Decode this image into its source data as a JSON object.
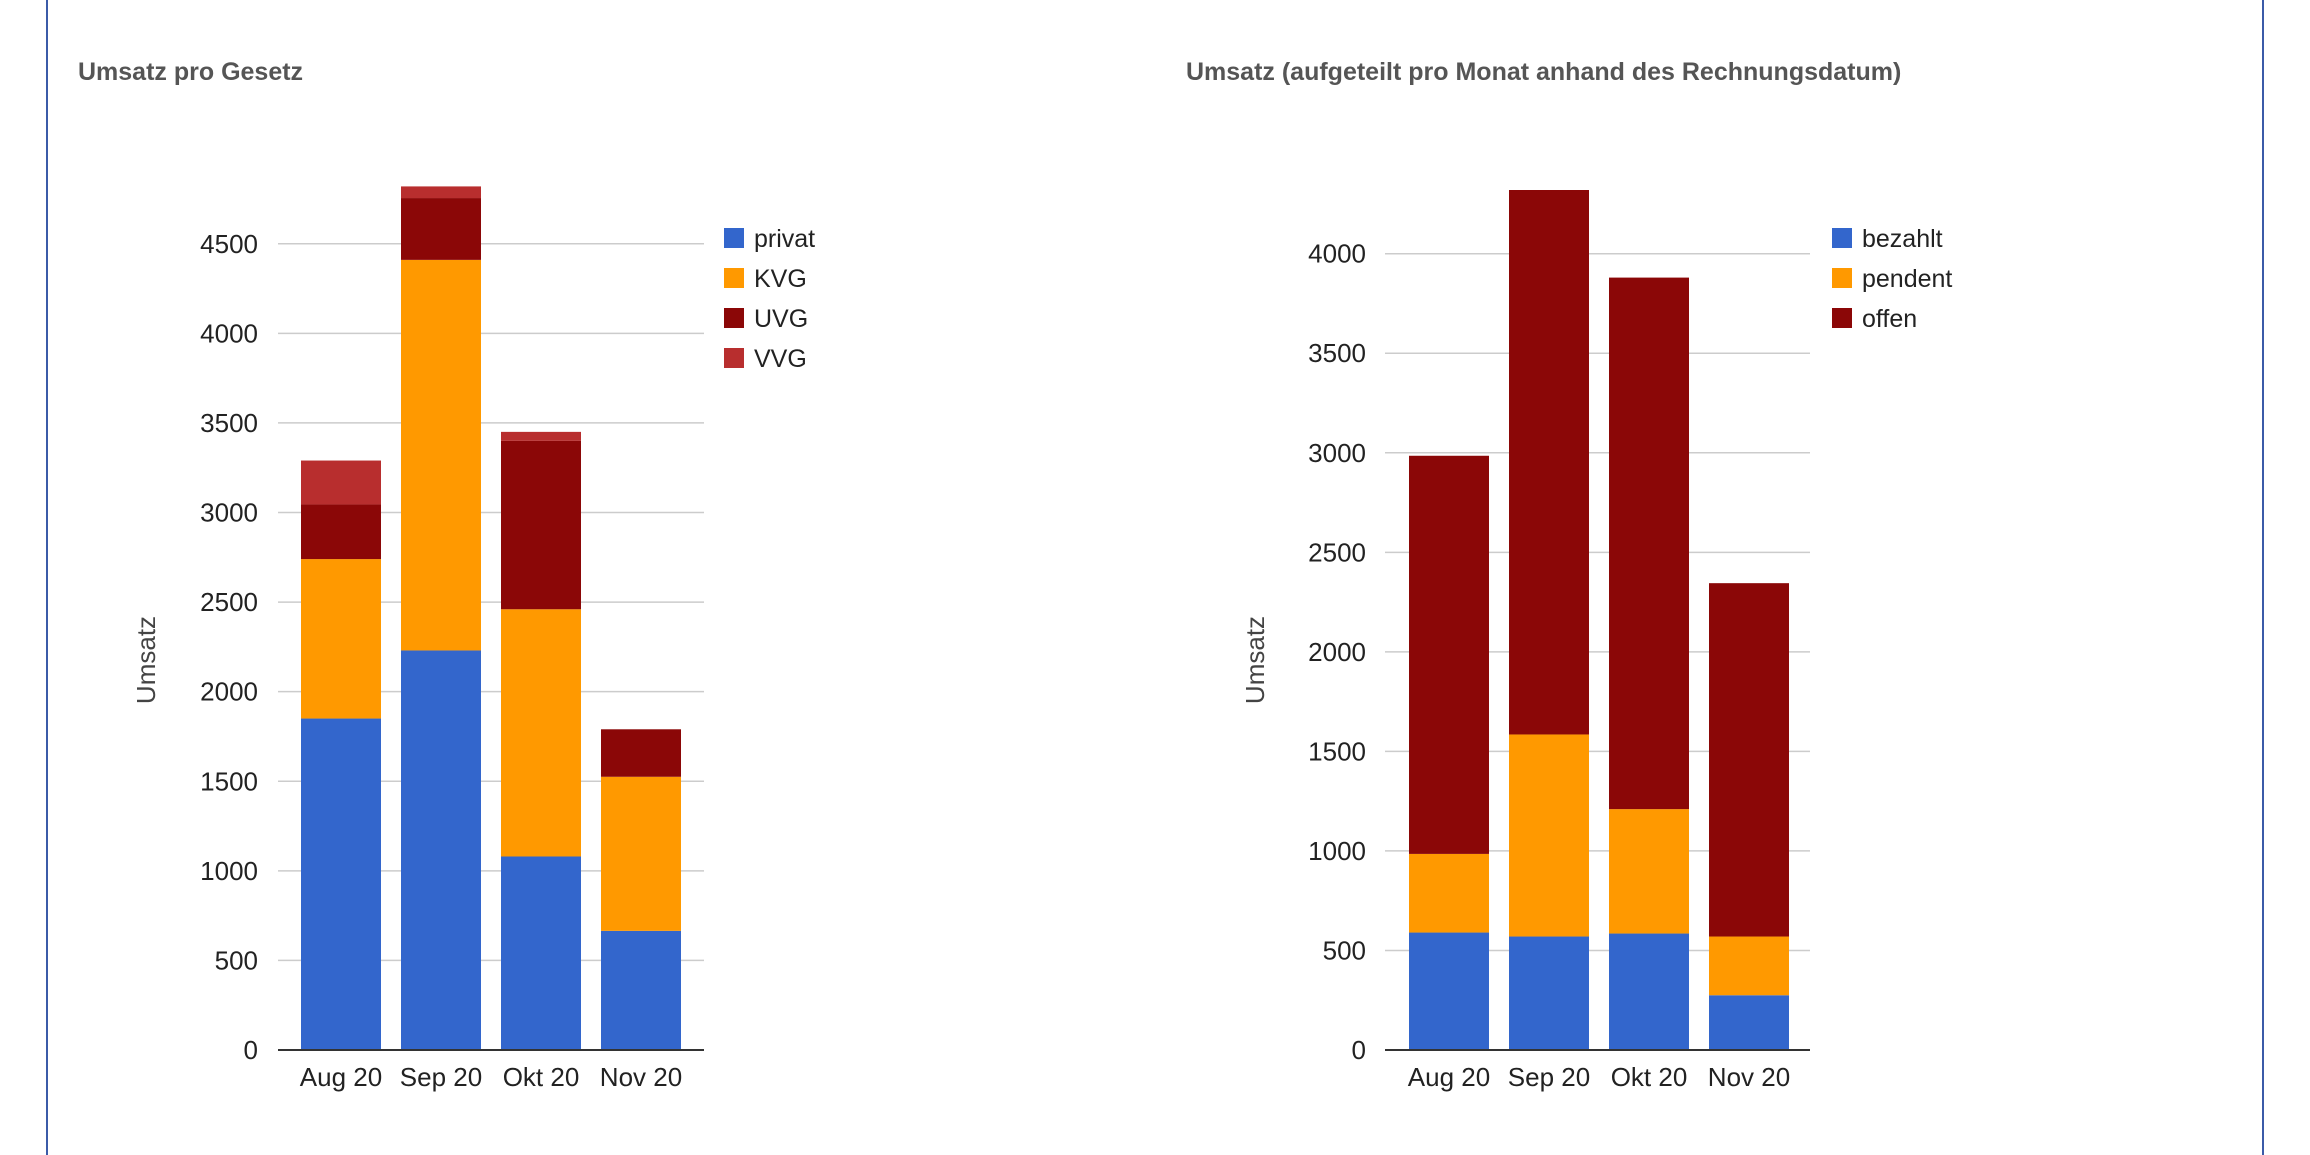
{
  "chart_data": [
    {
      "type": "bar",
      "stacked": true,
      "title": "Umsatz pro Gesetz",
      "ylabel": "Umsatz",
      "xlabel": "",
      "categories": [
        "Aug 20",
        "Sep 20",
        "Okt 20",
        "Nov 20"
      ],
      "series": [
        {
          "name": "privat",
          "color": "#3366cc",
          "values": [
            1850,
            2230,
            1080,
            665
          ]
        },
        {
          "name": "KVG",
          "color": "#ff9900",
          "values": [
            890,
            2180,
            1380,
            860
          ]
        },
        {
          "name": "UVG",
          "color": "#8b0707",
          "values": [
            305,
            345,
            940,
            265
          ]
        },
        {
          "name": "VVG",
          "color": "#b82e2e",
          "values": [
            245,
            65,
            50,
            0
          ]
        }
      ],
      "ylim": [
        0,
        4800
      ],
      "yticks": [
        0,
        500,
        1000,
        1500,
        2000,
        2500,
        3000,
        3500,
        4000,
        4500
      ],
      "grid": true,
      "legend": "right",
      "highlighted": false
    },
    {
      "type": "bar",
      "stacked": true,
      "title": "Umsatz (aufgeteilt pro Monat anhand des Rechnungsdatum)",
      "ylabel": "Umsatz",
      "xlabel": "",
      "categories": [
        "Aug 20",
        "Sep 20",
        "Okt 20",
        "Nov 20"
      ],
      "series": [
        {
          "name": "bezahlt",
          "color": "#3366cc",
          "values": [
            590,
            570,
            585,
            275
          ]
        },
        {
          "name": "pendent",
          "color": "#ff9900",
          "values": [
            395,
            1015,
            625,
            295
          ]
        },
        {
          "name": "offen",
          "color": "#8b0707",
          "values": [
            2000,
            2735,
            2670,
            1775
          ]
        }
      ],
      "ylim": [
        0,
        4320
      ],
      "yticks": [
        0,
        500,
        1000,
        1500,
        2000,
        2500,
        3000,
        3500,
        4000
      ],
      "grid": true,
      "legend": "right",
      "highlighted": true,
      "highlight_color": "#e01e2b"
    }
  ]
}
